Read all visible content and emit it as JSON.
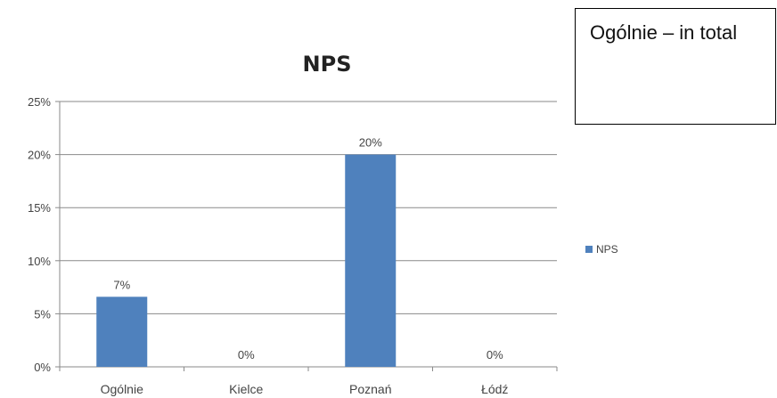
{
  "chart_data": {
    "type": "bar",
    "title": "NPS",
    "categories": [
      "Ogólnie",
      "Kielce",
      "Poznań",
      "Łódź"
    ],
    "series": [
      {
        "name": "NPS",
        "values": [
          0.066,
          0,
          0.2,
          0
        ],
        "data_labels": [
          "7%",
          "0%",
          "20%",
          "0%"
        ]
      }
    ],
    "ylim": [
      0,
      0.25
    ],
    "yticks": [
      0,
      0.05,
      0.1,
      0.15,
      0.2,
      0.25
    ],
    "ytick_labels": [
      "0%",
      "5%",
      "10%",
      "15%",
      "20%",
      "25%"
    ],
    "grid": true,
    "legend_position": "right",
    "bar_color": "#4f81bd"
  },
  "note": {
    "text": "Ogólnie – in total"
  }
}
